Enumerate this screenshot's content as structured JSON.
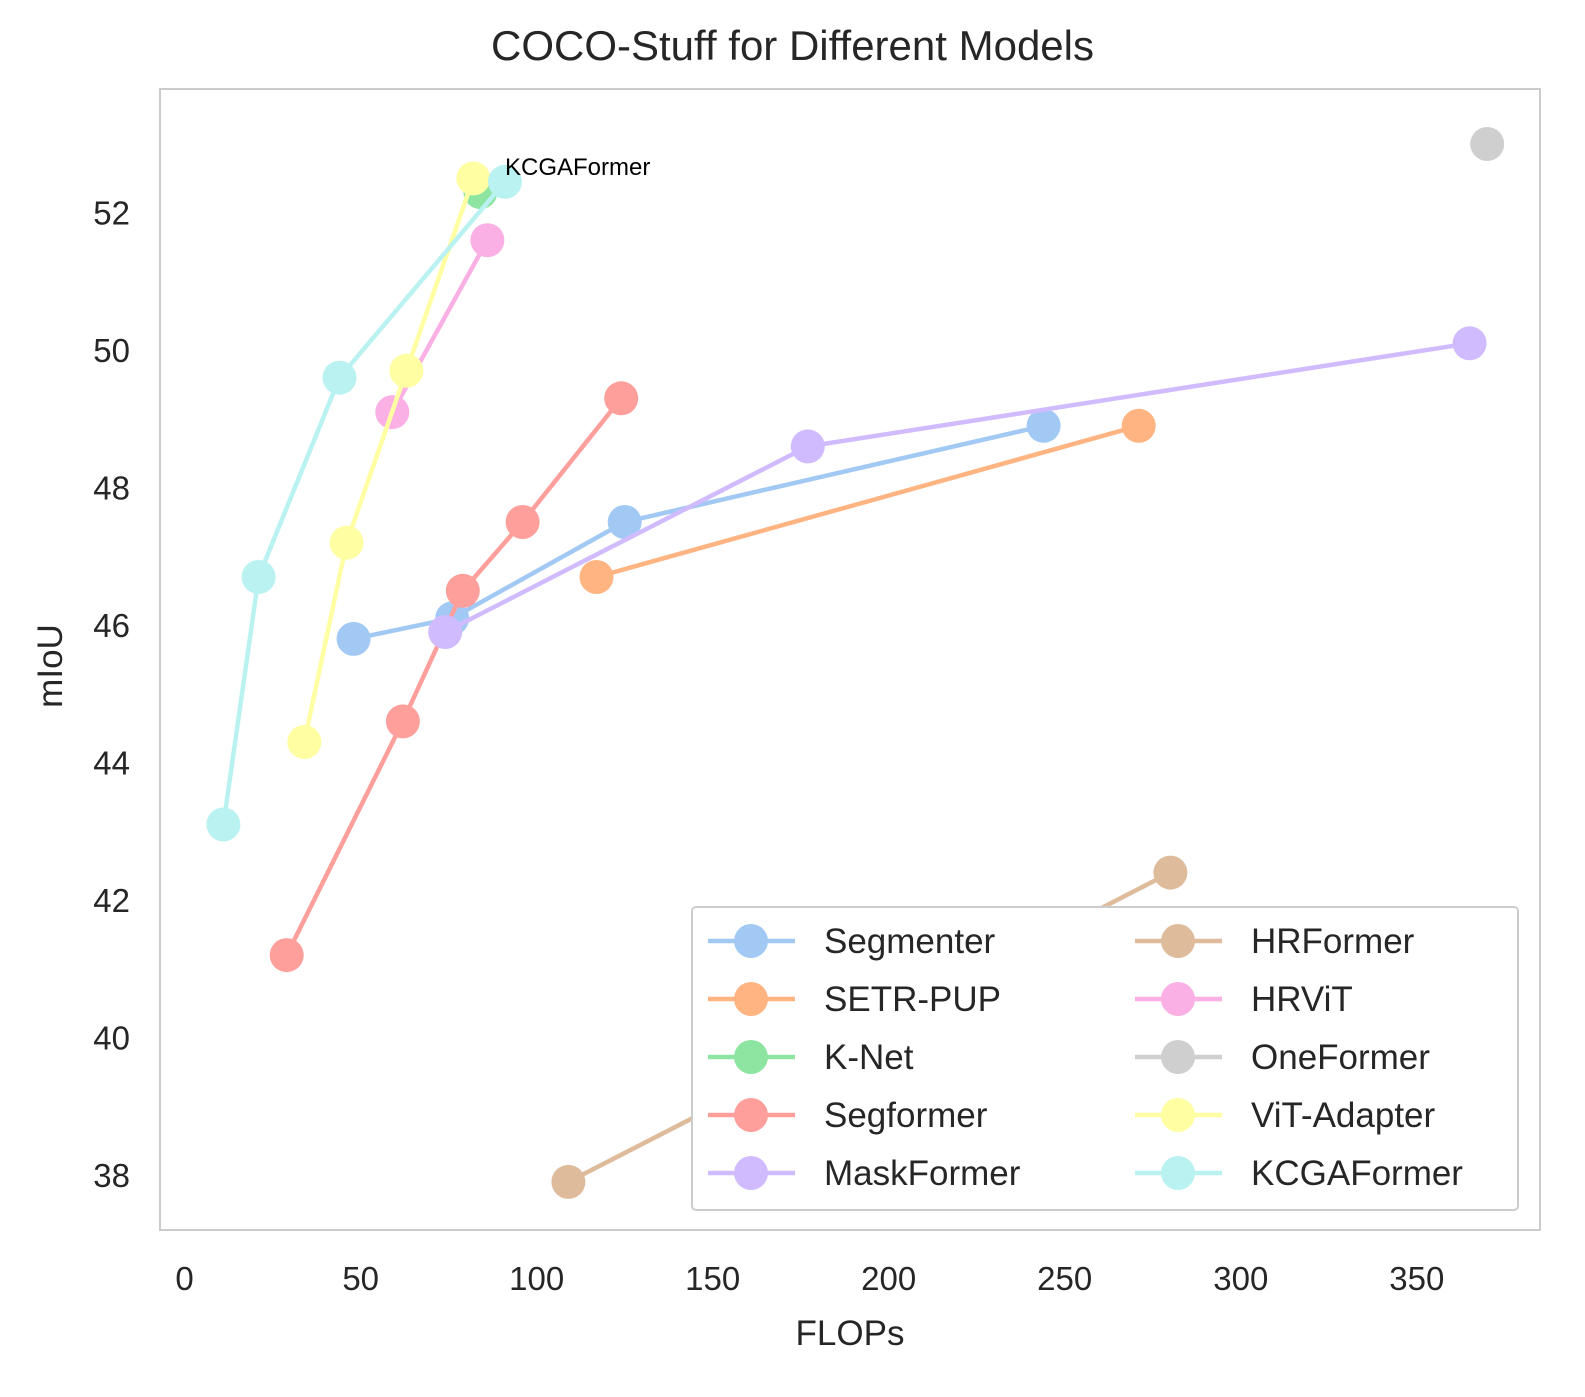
{
  "chart_data": {
    "type": "line",
    "title": "COCO-Stuff for Different Models",
    "xlabel": "FLOPs",
    "ylabel": "mIoU",
    "xlim": [
      -7,
      385
    ],
    "ylim": [
      37.2,
      53.8
    ],
    "xticks": [
      "0",
      "50",
      "100",
      "150",
      "200",
      "250",
      "300",
      "350"
    ],
    "xtick_values": [
      0,
      50,
      100,
      150,
      200,
      250,
      300,
      350
    ],
    "yticks": [
      "38",
      "40",
      "42",
      "44",
      "46",
      "48",
      "50",
      "52"
    ],
    "ytick_values": [
      38,
      40,
      42,
      44,
      46,
      48,
      50,
      52
    ],
    "grid": false,
    "legend_position": "lower-right",
    "legend_columns": 2,
    "annotations": [
      {
        "text": "KCGAFormer",
        "x": 91,
        "y": 52.45
      }
    ],
    "series": [
      {
        "name": "Segmenter",
        "color": "#a1c9f4",
        "x": [
          48,
          76,
          125,
          244
        ],
        "y": [
          45.8,
          46.1,
          47.5,
          48.9
        ]
      },
      {
        "name": "SETR-PUP",
        "color": "#ffb482",
        "x": [
          117,
          271
        ],
        "y": [
          46.7,
          48.9
        ]
      },
      {
        "name": "K-Net",
        "color": "#8de5a1",
        "x": [
          84
        ],
        "y": [
          52.3
        ]
      },
      {
        "name": "Segformer",
        "color": "#ff9f9b",
        "x": [
          29,
          62,
          79,
          96,
          124
        ],
        "y": [
          41.2,
          44.6,
          46.5,
          47.5,
          49.3
        ]
      },
      {
        "name": "MaskFormer",
        "color": "#d0bbff",
        "x": [
          74,
          177,
          365
        ],
        "y": [
          45.9,
          48.6,
          50.1
        ]
      },
      {
        "name": "HRFormer",
        "color": "#debb9b",
        "x": [
          109,
          280
        ],
        "y": [
          37.9,
          42.4
        ]
      },
      {
        "name": "HRViT",
        "color": "#fab0e4",
        "x": [
          59,
          86
        ],
        "y": [
          49.1,
          51.6
        ]
      },
      {
        "name": "OneFormer",
        "color": "#cfcfcf",
        "x": [
          370
        ],
        "y": [
          53.0
        ]
      },
      {
        "name": "ViT-Adapter",
        "color": "#fffea3",
        "x": [
          34,
          46,
          63,
          82
        ],
        "y": [
          44.3,
          47.2,
          49.7,
          52.5
        ]
      },
      {
        "name": "KCGAFormer",
        "color": "#b9f2f0",
        "x": [
          11,
          21,
          44,
          91
        ],
        "y": [
          43.1,
          46.7,
          49.6,
          52.45
        ]
      }
    ]
  }
}
